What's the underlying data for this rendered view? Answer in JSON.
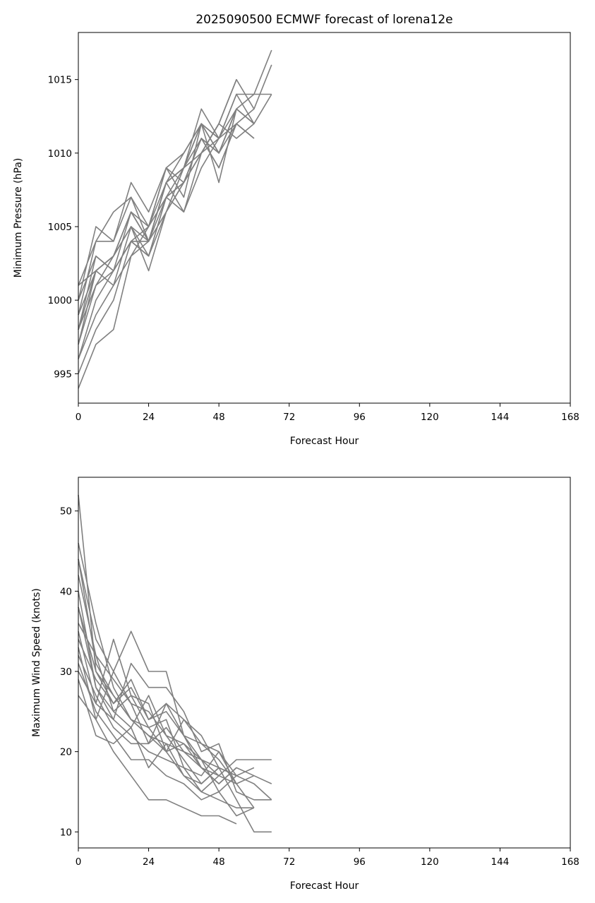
{
  "colors": {
    "member_line": "#808080",
    "axis": "#000000",
    "background": "#ffffff"
  },
  "chart_data": [
    {
      "type": "line",
      "title": "2025090500 ECMWF forecast of lorena12e",
      "xlabel": "Forecast Hour",
      "ylabel": "Minimum Pressure (hPa)",
      "xlim": [
        0,
        168
      ],
      "ylim": [
        993,
        1018.2
      ],
      "xticks": [
        0,
        24,
        48,
        72,
        96,
        120,
        144,
        168
      ],
      "yticks": [
        995,
        1000,
        1005,
        1010,
        1015
      ],
      "grid": false,
      "legend": "none",
      "x": [
        0,
        6,
        12,
        18,
        24,
        30,
        36,
        42,
        48,
        54,
        60,
        66
      ],
      "series": [
        {
          "values": [
            994,
            997,
            998,
            1003,
            1004,
            1008,
            1009,
            1012,
            1011,
            1014,
            1014,
            1017
          ]
        },
        {
          "values": [
            995,
            998,
            1000,
            1004,
            1003,
            1007,
            1008,
            1010,
            1012,
            1015,
            1013,
            1016
          ]
        },
        {
          "values": [
            996,
            999,
            1001,
            1005,
            1002,
            1006,
            1008,
            1011,
            1010,
            1013,
            1012,
            1014
          ]
        },
        {
          "values": [
            996,
            1000,
            1002,
            1004,
            1004,
            1008,
            1006,
            1009,
            1011,
            1012,
            1011,
            null
          ]
        },
        {
          "values": [
            997,
            1001,
            1003,
            1006,
            1005,
            1009,
            1007,
            1012,
            1010,
            1013,
            1014,
            1014
          ]
        },
        {
          "values": [
            997,
            1002,
            1001,
            1003,
            1005,
            1007,
            1009,
            1010,
            1012,
            1015,
            null,
            null
          ]
        },
        {
          "values": [
            998,
            1002,
            1003,
            1005,
            1003,
            1006,
            1008,
            1011,
            1009,
            1012,
            1013,
            null
          ]
        },
        {
          "values": [
            998,
            1003,
            1002,
            1006,
            1004,
            1008,
            1009,
            1013,
            1011,
            1014,
            1012,
            null
          ]
        },
        {
          "values": [
            999,
            1004,
            1004,
            1007,
            1005,
            1009,
            1010,
            1012,
            1010,
            1013,
            null,
            null
          ]
        },
        {
          "values": [
            999,
            1002,
            1003,
            1005,
            1004,
            1007,
            1006,
            1010,
            1012,
            1011,
            1012,
            null
          ]
        },
        {
          "values": [
            1000,
            1005,
            1004,
            1008,
            1006,
            1009,
            1008,
            1011,
            1009,
            1012,
            1011,
            null
          ]
        },
        {
          "values": [
            1000,
            1003,
            1002,
            1004,
            1005,
            1008,
            1009,
            1012,
            1011,
            1013,
            null,
            null
          ]
        },
        {
          "values": [
            1001,
            1004,
            1006,
            1007,
            1004,
            1008,
            1010,
            1012,
            1008,
            1013,
            1012,
            null
          ]
        },
        {
          "values": [
            1001,
            1002,
            1003,
            1006,
            1004,
            1006,
            1009,
            1011,
            1010,
            1012,
            null,
            null
          ]
        },
        {
          "values": [
            998,
            1001,
            1002,
            1004,
            1003,
            1007,
            1008,
            1010,
            1011,
            null,
            null,
            null
          ]
        }
      ]
    },
    {
      "type": "line",
      "title": "",
      "xlabel": "Forecast Hour",
      "ylabel": "Maximum Wind Speed (knots)",
      "xlim": [
        0,
        168
      ],
      "ylim": [
        8,
        54.2
      ],
      "xticks": [
        0,
        24,
        48,
        72,
        96,
        120,
        144,
        168
      ],
      "yticks": [
        10,
        20,
        30,
        40,
        50
      ],
      "grid": false,
      "legend": "none",
      "x": [
        0,
        6,
        12,
        18,
        24,
        30,
        36,
        42,
        48,
        54,
        60,
        66
      ],
      "series": [
        {
          "values": [
            52,
            30,
            26,
            28,
            24,
            26,
            22,
            19,
            17,
            19,
            19,
            19
          ]
        },
        {
          "values": [
            46,
            36,
            28,
            24,
            22,
            21,
            20,
            18,
            16,
            18,
            17,
            16
          ]
        },
        {
          "values": [
            44,
            34,
            30,
            35,
            30,
            30,
            22,
            21,
            20,
            17,
            16,
            14
          ]
        },
        {
          "values": [
            42,
            32,
            25,
            27,
            23,
            24,
            18,
            15,
            17,
            16,
            13,
            null
          ]
        },
        {
          "values": [
            40,
            28,
            24,
            31,
            28,
            28,
            25,
            20,
            21,
            15,
            14,
            14
          ]
        },
        {
          "values": [
            38,
            30,
            27,
            24,
            22,
            20,
            17,
            16,
            18,
            14,
            10,
            10
          ]
        },
        {
          "values": [
            36,
            32,
            29,
            26,
            25,
            22,
            21,
            19,
            15,
            17,
            null,
            null
          ]
        },
        {
          "values": [
            35,
            26,
            24,
            22,
            20,
            19,
            18,
            17,
            20,
            16,
            17,
            null
          ]
        },
        {
          "values": [
            34,
            29,
            26,
            29,
            24,
            25,
            22,
            18,
            16,
            18,
            null,
            null
          ]
        },
        {
          "values": [
            33,
            24,
            20,
            17,
            14,
            14,
            13,
            12,
            12,
            11,
            null,
            null
          ]
        },
        {
          "values": [
            32,
            27,
            23,
            21,
            21,
            23,
            20,
            19,
            18,
            17,
            18,
            null
          ]
        },
        {
          "values": [
            31,
            25,
            22,
            19,
            19,
            17,
            16,
            14,
            15,
            12,
            13,
            null
          ]
        },
        {
          "values": [
            30,
            26,
            34,
            27,
            26,
            20,
            24,
            21,
            19,
            16,
            null,
            null
          ]
        },
        {
          "values": [
            29,
            22,
            21,
            23,
            18,
            21,
            17,
            15,
            14,
            13,
            13,
            null
          ]
        },
        {
          "values": [
            27,
            24,
            30,
            26,
            21,
            26,
            24,
            22,
            18,
            null,
            null,
            null
          ]
        },
        {
          "values": [
            38,
            28,
            25,
            23,
            27,
            22,
            19,
            16,
            18,
            17,
            null,
            null
          ]
        },
        {
          "values": [
            44,
            31,
            27,
            24,
            23,
            20,
            21,
            18,
            17,
            null,
            null,
            null
          ]
        }
      ]
    }
  ]
}
